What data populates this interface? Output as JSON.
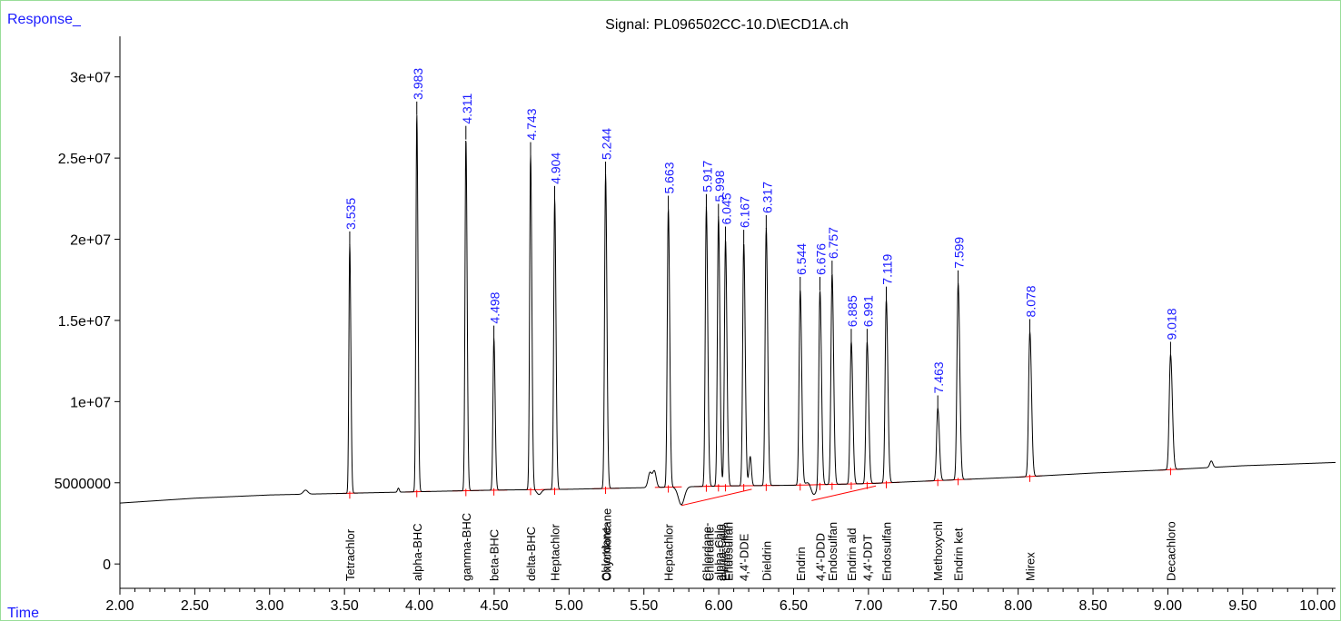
{
  "chart_data": {
    "type": "line",
    "title": "Signal: PL096502CC-10.D\\ECD1A.ch",
    "ylabel": "Response_",
    "xlabel": "Time",
    "xlim": [
      2.0,
      10.12
    ],
    "ylim": [
      -1500000,
      32500000
    ],
    "x_ticks": [
      "2.00",
      "2.50",
      "3.00",
      "3.50",
      "4.00",
      "4.50",
      "5.00",
      "5.50",
      "6.00",
      "6.50",
      "7.00",
      "7.50",
      "8.00",
      "8.50",
      "9.00",
      "9.50",
      "10.00"
    ],
    "y_ticks": [
      {
        "value": 0,
        "label": "0"
      },
      {
        "value": 5000000,
        "label": "5000000"
      },
      {
        "value": 10000000,
        "label": "1e+07"
      },
      {
        "value": 15000000,
        "label": "1.5e+07"
      },
      {
        "value": 20000000,
        "label": "2e+07"
      },
      {
        "value": 25000000,
        "label": "2.5e+07"
      },
      {
        "value": 30000000,
        "label": "3e+07"
      }
    ],
    "baseline": [
      [
        2.0,
        3750000
      ],
      [
        2.5,
        4050000
      ],
      [
        3.0,
        4250000
      ],
      [
        3.5,
        4350000
      ],
      [
        4.0,
        4450000
      ],
      [
        4.5,
        4550000
      ],
      [
        5.0,
        4600000
      ],
      [
        5.5,
        4700000
      ],
      [
        6.0,
        4800000
      ],
      [
        6.5,
        4850000
      ],
      [
        7.0,
        4950000
      ],
      [
        7.5,
        5150000
      ],
      [
        8.0,
        5350000
      ],
      [
        8.5,
        5600000
      ],
      [
        9.0,
        5800000
      ],
      [
        9.5,
        6050000
      ],
      [
        10.12,
        6250000
      ]
    ],
    "peaks": [
      {
        "rt": 3.535,
        "label": "3.535",
        "height": 19700000,
        "compound": "Tetrachlor"
      },
      {
        "rt": 3.983,
        "label": "3.983",
        "height": 27700000,
        "compound": "alpha-BHC"
      },
      {
        "rt": 4.311,
        "label": "4.311",
        "height": 26200000,
        "compound": "gamma-BHC"
      },
      {
        "rt": 4.498,
        "label": "4.498",
        "height": 13900000,
        "compound": "beta-BHC"
      },
      {
        "rt": 4.743,
        "label": "4.743",
        "height": 25200000,
        "compound": "delta-BHC"
      },
      {
        "rt": 4.904,
        "label": "4.904",
        "height": 22500000,
        "compound": "Heptachlor"
      },
      {
        "rt": 5.244,
        "label": "5.244",
        "height": 24000000,
        "compound": "Chlordane-"
      },
      {
        "rt": 5.663,
        "label": "5.663",
        "height": 21900000,
        "compound": "Heptachlor"
      },
      {
        "rt": 5.917,
        "label": "5.917",
        "height": 22000000,
        "compound": "Chlordane-"
      },
      {
        "rt": 5.998,
        "label": "5.998",
        "height": 21400000,
        "compound": "alpha-Chlo"
      },
      {
        "rt": 6.045,
        "label": "6.045",
        "height": 20000000,
        "compound": "Endosulfan"
      },
      {
        "rt": 6.167,
        "label": "6.167",
        "height": 19800000,
        "compound": "4,4'-DDE"
      },
      {
        "rt": 6.317,
        "label": "6.317",
        "height": 20700000,
        "compound": "Dieldrin"
      },
      {
        "rt": 6.544,
        "label": "6.544",
        "height": 16900000,
        "compound": "Endrin"
      },
      {
        "rt": 6.676,
        "label": "6.676",
        "height": 16900000,
        "compound": "4,4'-DDD"
      },
      {
        "rt": 6.757,
        "label": "6.757",
        "height": 17900000,
        "compound": "Endosulfan"
      },
      {
        "rt": 6.885,
        "label": "6.885",
        "height": 13700000,
        "compound": "Endrin ald"
      },
      {
        "rt": 6.991,
        "label": "6.991",
        "height": 13700000,
        "compound": "4,4'-DDT"
      },
      {
        "rt": 7.119,
        "label": "7.119",
        "height": 16300000,
        "compound": "Endosulfan"
      },
      {
        "rt": 7.463,
        "label": "7.463",
        "height": 9600000,
        "compound": "Methoxychl"
      },
      {
        "rt": 7.599,
        "label": "7.599",
        "height": 17300000,
        "compound": "Endrin ket"
      },
      {
        "rt": 8.078,
        "label": "8.078",
        "height": 14300000,
        "compound": "Mirex"
      },
      {
        "rt": 9.018,
        "label": "9.018",
        "height": 12900000,
        "compound": "Decachloro"
      }
    ],
    "extra_compound_labels": [
      "Oxychlordane",
      "Chlordane",
      "alpha-Chlo",
      "Endosulfan"
    ],
    "grid": false,
    "legend": "none",
    "colors": {
      "signal": "#000000",
      "baseline_fit": "#ff0000",
      "peak_labels": "#1a1aff",
      "frame": "#99dd99",
      "axis_text": "#000000",
      "corner_labels": "#1a1aff"
    }
  }
}
